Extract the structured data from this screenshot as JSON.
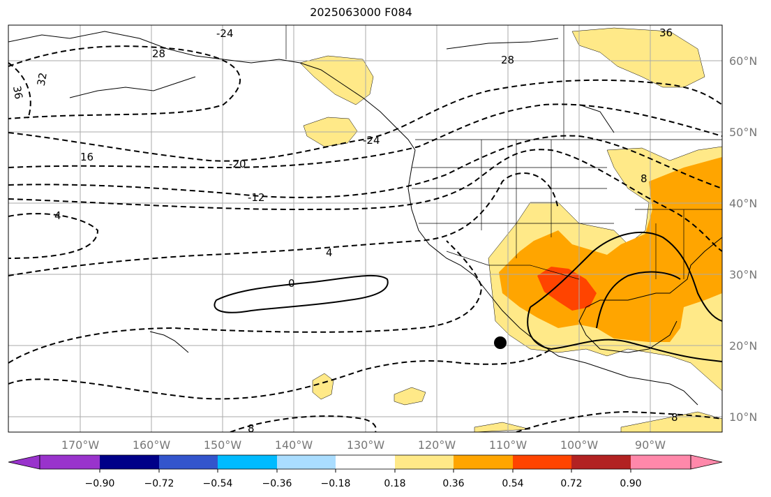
{
  "title": "2025063000 F084",
  "lat_labels": [
    "60°N",
    "50°N",
    "40°N",
    "30°N",
    "20°N",
    "10°N"
  ],
  "lon_labels": [
    "170°W",
    "160°W",
    "150°W",
    "140°W",
    "130°W",
    "120°W",
    "110°W",
    "100°W",
    "90°W"
  ],
  "colorbar": {
    "ticks": [
      "−0.90",
      "−0.72",
      "−0.54",
      "−0.36",
      "−0.18",
      "0.18",
      "0.36",
      "0.54",
      "0.72",
      "0.90"
    ],
    "colors": [
      "#9933cc",
      "#000088",
      "#3355cc",
      "#00bbff",
      "#aaddff",
      "#ffffff",
      "#ffe988",
      "#ffa500",
      "#ff4400",
      "#b22222",
      "#ff88aa"
    ]
  },
  "contour_labels": [
    "-24",
    "28",
    "32",
    "36",
    "16",
    "-20",
    "-12",
    "4",
    "4",
    "0",
    "-24",
    "28",
    "36",
    "8",
    "8",
    "8"
  ],
  "fill_colors": {
    "light": "#ffe988",
    "orange": "#ffa500",
    "red": "#ff4400"
  }
}
